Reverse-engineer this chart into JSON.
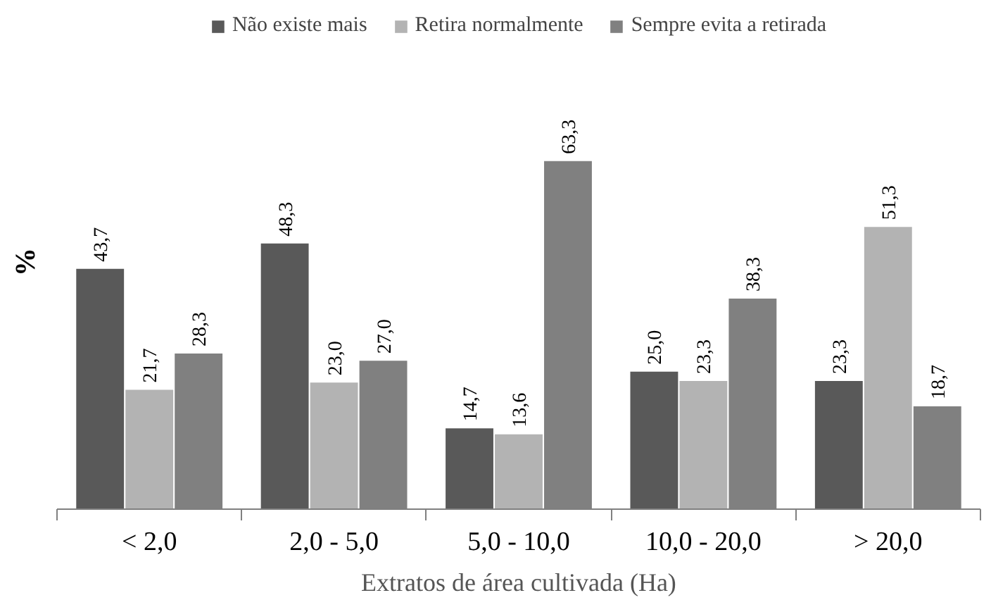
{
  "chart_data": {
    "type": "bar",
    "xlabel": "Extratos de área cultivada (Ha)",
    "ylabel": "%",
    "categories": [
      "< 2,0",
      "2,0 - 5,0",
      "5,0 - 10,0",
      "10,0 - 20,0",
      "> 20,0"
    ],
    "series": [
      {
        "name": "Não existe mais",
        "color": "#595959",
        "values": [
          43.7,
          48.3,
          14.7,
          25.0,
          23.3
        ],
        "value_labels": [
          "43,7",
          "48,3",
          "14,7",
          "25,0",
          "23,3"
        ]
      },
      {
        "name": "Retira normalmente",
        "color": "#b3b3b3",
        "values": [
          21.7,
          23.0,
          13.6,
          23.3,
          51.3
        ],
        "value_labels": [
          "21,7",
          "23,0",
          "13,6",
          "23,3",
          "51,3"
        ]
      },
      {
        "name": "Sempre evita a retirada",
        "color": "#808080",
        "values": [
          28.3,
          27.0,
          63.3,
          38.3,
          18.7
        ],
        "value_labels": [
          "28,3",
          "27,0",
          "63,3",
          "38,3",
          "18,7"
        ]
      }
    ],
    "legend": "top"
  }
}
